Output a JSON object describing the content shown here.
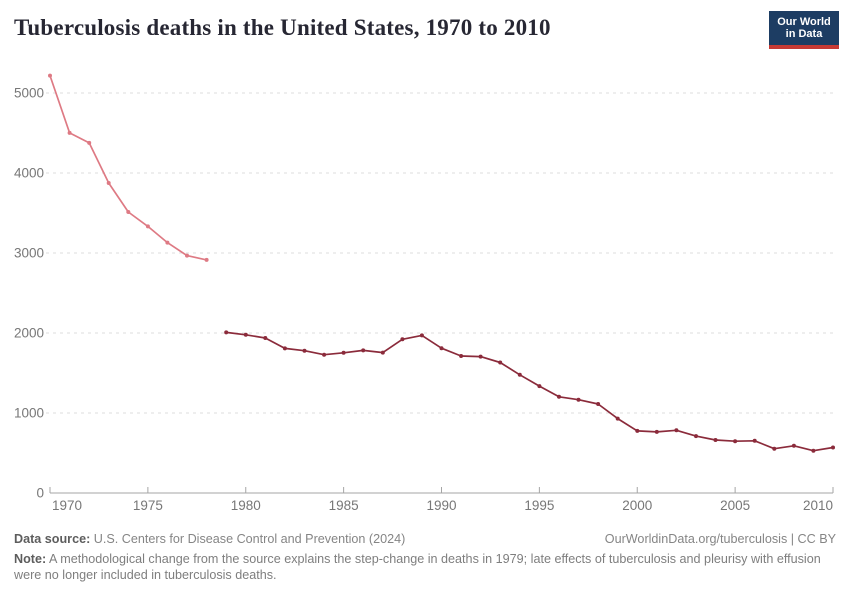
{
  "header": {
    "title": "Tuberculosis deaths in the United States, 1970 to 2010",
    "logo": {
      "line1": "Our World",
      "line2": "in Data"
    }
  },
  "chart_data": {
    "type": "line",
    "title": "Tuberculosis deaths in the United States, 1970 to 2010",
    "xlabel": "",
    "ylabel": "",
    "xlim": [
      1970,
      2010
    ],
    "ylim": [
      0,
      5300
    ],
    "xticks": [
      1970,
      1975,
      1980,
      1985,
      1990,
      1995,
      2000,
      2005,
      2010
    ],
    "yticks": [
      0,
      1000,
      2000,
      3000,
      4000,
      5000
    ],
    "grid": "horizontal-dashed",
    "legend": "none",
    "series": [
      {
        "name": "1970-1978",
        "color": "#DE7A84",
        "years": [
          1970,
          1971,
          1972,
          1973,
          1974,
          1975,
          1976,
          1977,
          1978
        ],
        "values": [
          5217,
          4501,
          4376,
          3875,
          3513,
          3333,
          3130,
          2968,
          2914
        ]
      },
      {
        "name": "1979-2010",
        "color": "#8B2B3B",
        "years": [
          1979,
          1980,
          1981,
          1982,
          1983,
          1984,
          1985,
          1986,
          1987,
          1988,
          1989,
          1990,
          1991,
          1992,
          1993,
          1994,
          1995,
          1996,
          1997,
          1998,
          1999,
          2000,
          2001,
          2002,
          2003,
          2004,
          2005,
          2006,
          2007,
          2008,
          2009,
          2010
        ],
        "values": [
          2007,
          1978,
          1937,
          1807,
          1779,
          1729,
          1752,
          1782,
          1755,
          1921,
          1970,
          1810,
          1713,
          1705,
          1631,
          1478,
          1336,
          1202,
          1166,
          1112,
          930,
          776,
          764,
          784,
          711,
          662,
          648,
          652,
          554,
          590,
          529,
          569
        ]
      }
    ]
  },
  "footer": {
    "datasource_label": "Data source:",
    "datasource": "U.S. Centers for Disease Control and Prevention (2024)",
    "link": "OurWorldinData.org/tuberculosis | CC BY",
    "note_label": "Note:",
    "note": "A methodological change from the source explains the step-change in deaths in 1979; late effects of tuberculosis and pleurisy with effusion were no longer included in tuberculosis deaths."
  },
  "colors": {
    "segment_early": "#DE7A84",
    "segment_late": "#8B2B3B",
    "logo_background": "#1D3D63",
    "logo_stripe": "#C73A34",
    "gridline": "#DCDCDC",
    "axis": "#A5A5A5",
    "tick_label": "#777777",
    "title_text": "#272733",
    "footer_text": "#858585"
  }
}
